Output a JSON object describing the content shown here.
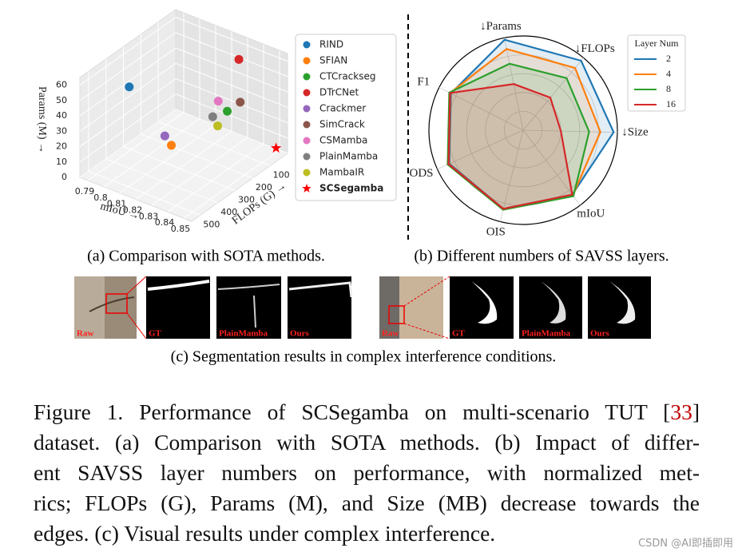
{
  "chart_data": [
    {
      "type": "scatter3d",
      "caption": "(a) Comparison with SOTA methods.",
      "xlabel": "mIoU →",
      "ylabel": "FLOPs (G) →",
      "zlabel": "Params (M) →",
      "xlim": [
        0.785,
        0.855
      ],
      "xticks": [
        0.79,
        0.8,
        0.81,
        0.82,
        0.83,
        0.84,
        0.85
      ],
      "ylim": [
        0,
        550
      ],
      "yticks": [
        100,
        200,
        300,
        400,
        500
      ],
      "zlim": [
        0,
        65
      ],
      "zticks": [
        0,
        10,
        20,
        30,
        40,
        50,
        60
      ],
      "series": [
        {
          "name": "RIND",
          "color": "#1f77b4",
          "marker": "circle",
          "x": 0.805,
          "y": 450,
          "z": 59
        },
        {
          "name": "SFIAN",
          "color": "#ff7f0e",
          "marker": "circle",
          "x": 0.815,
          "y": 300,
          "z": 13
        },
        {
          "name": "CTCrackseg",
          "color": "#2ca02c",
          "marker": "circle",
          "x": 0.826,
          "y": 80,
          "z": 22
        },
        {
          "name": "DTrCNet",
          "color": "#d62728",
          "marker": "circle",
          "x": 0.83,
          "y": 50,
          "z": 55
        },
        {
          "name": "Crackmer",
          "color": "#9467bd",
          "marker": "circle",
          "x": 0.8,
          "y": 200,
          "z": 5
        },
        {
          "name": "SimCrack",
          "color": "#8c564b",
          "marker": "circle",
          "x": 0.833,
          "y": 70,
          "z": 30
        },
        {
          "name": "CSMamba",
          "color": "#e377c2",
          "marker": "circle",
          "x": 0.828,
          "y": 150,
          "z": 35
        },
        {
          "name": "PlainMamba",
          "color": "#7f7f7f",
          "marker": "circle",
          "x": 0.818,
          "y": 90,
          "z": 16
        },
        {
          "name": "MambaIR",
          "color": "#bcbd22",
          "marker": "circle",
          "x": 0.82,
          "y": 80,
          "z": 10
        },
        {
          "name": "SCSegamba",
          "color": "#ff0000",
          "marker": "star",
          "x": 0.85,
          "y": 20,
          "z": 3
        }
      ]
    },
    {
      "type": "radar",
      "caption": "(b) Different numbers of SAVSS layers.",
      "axes": [
        "↓Params",
        "↓FLOPs",
        "↓Size",
        "mIoU",
        "OIS",
        "ODS",
        "F1"
      ],
      "rlim": [
        0,
        1
      ],
      "rticks": [
        0.2,
        0.4,
        0.6,
        0.8,
        1.0
      ],
      "legend_title": "Layer Num",
      "series": [
        {
          "name": "2",
          "color": "#1f77b4",
          "values": [
            0.98,
            0.96,
            0.96,
            0.86,
            0.86,
            0.86,
            0.86
          ]
        },
        {
          "name": "4",
          "color": "#ff7f0e",
          "values": [
            0.88,
            0.86,
            0.82,
            0.87,
            0.87,
            0.87,
            0.87
          ]
        },
        {
          "name": "8",
          "color": "#2ca02c",
          "values": [
            0.72,
            0.72,
            0.7,
            0.88,
            0.87,
            0.88,
            0.88
          ]
        },
        {
          "name": "16",
          "color": "#d62728",
          "values": [
            0.5,
            0.45,
            0.4,
            0.86,
            0.86,
            0.87,
            0.87
          ]
        }
      ]
    }
  ],
  "panel_c": {
    "caption": "(c) Segmentation results in complex interference conditions.",
    "groups": [
      {
        "labels": [
          "Raw",
          "GT",
          "PlainMamba",
          "Ours"
        ]
      },
      {
        "labels": [
          "Raw",
          "GT",
          "PlainMamba",
          "Ours"
        ]
      }
    ]
  },
  "figure_caption": {
    "prefix": "Figure 1. Performance of SCSegamba on multi-scenario TUT [",
    "ref": "33",
    "suffix": "]",
    "lines": [
      "dataset. (a) Comparison with SOTA methods. (b) Impact of differ-",
      "ent SAVSS layer numbers on performance, with normalized met-",
      "rics; FLOPs (G), Params (M), and Size (MB) decrease towards the",
      "edges. (c) Visual results under complex interference."
    ]
  },
  "watermark": "CSDN @AI即插即用"
}
